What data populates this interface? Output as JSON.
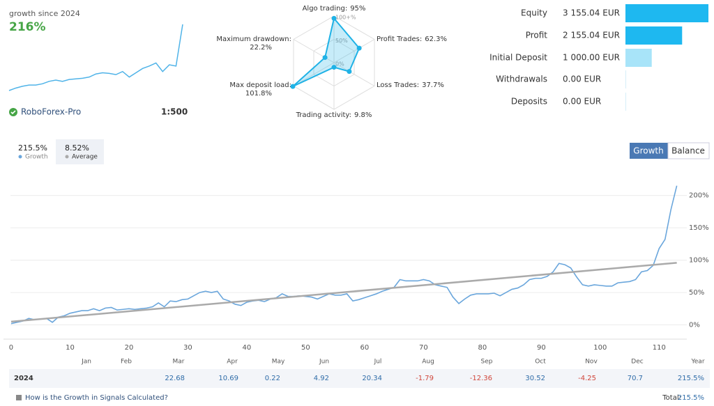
{
  "header": {
    "title": "growth since 2024",
    "growth": "216%",
    "broker": "RoboForex-Pro",
    "leverage": "1:500"
  },
  "chart_data": [
    {
      "type": "sparkline",
      "values": [
        0,
        8,
        14,
        18,
        18,
        22,
        30,
        34,
        30,
        36,
        38,
        40,
        44,
        54,
        58,
        56,
        52,
        62,
        44,
        58,
        72,
        80,
        90,
        62,
        84,
        80,
        216
      ],
      "color": "#4fb3e8"
    },
    {
      "type": "radar",
      "categories": [
        "Algo trading:",
        "Profit Trades:",
        "Loss Trades:",
        "Trading activity:",
        "Max deposit load:",
        "Maximum drawdown:"
      ],
      "values": [
        95,
        62.3,
        37.7,
        9.8,
        101.8,
        22.2
      ],
      "value_labels": [
        "95%",
        "62.3%",
        "37.7%",
        "9.8%",
        "101.8%",
        "22.2%"
      ],
      "rlim": [
        0,
        100
      ],
      "rticks": [
        {
          "value": 0,
          "label": "0%"
        },
        {
          "value": 50,
          "label": "50%"
        },
        {
          "value": 100,
          "label": "100+%"
        }
      ],
      "color": "#1fb2e6"
    },
    {
      "type": "hbar",
      "categories": [
        "Equity",
        "Profit",
        "Initial Deposit",
        "Withdrawals",
        "Deposits"
      ],
      "values": [
        3155.04,
        2155.04,
        1000,
        0,
        0
      ],
      "value_labels": [
        "3 155.04 EUR",
        "2 155.04 EUR",
        "1 000.00 EUR",
        "0.00 EUR",
        "0.00 EUR"
      ],
      "colors": [
        "#1eb8f0",
        "#1eb8f0",
        "#a8e4f9",
        "#d6eef8",
        "#d6eef8"
      ],
      "xlim": [
        0,
        3155.04
      ]
    },
    {
      "type": "line",
      "xlim": [
        -1.3,
        114.7
      ],
      "ylim": [
        -22,
        233
      ],
      "xticks": [
        0,
        10,
        20,
        30,
        40,
        50,
        60,
        70,
        80,
        90,
        100,
        110
      ],
      "yticks": [
        {
          "value": 0,
          "label": "0%"
        },
        {
          "value": 50,
          "label": "50%"
        },
        {
          "value": 100,
          "label": "100%"
        },
        {
          "value": 150,
          "label": "150%"
        },
        {
          "value": 200,
          "label": "200%"
        }
      ],
      "grid": true,
      "series": [
        {
          "name": "Growth",
          "summary": "215.5%",
          "color": "#6aa6dc",
          "x": [
            0,
            1,
            2,
            3,
            4,
            5,
            6,
            7,
            8,
            9,
            10,
            11,
            12,
            13,
            14,
            15,
            16,
            17,
            18,
            19,
            20,
            21,
            22,
            23,
            24,
            25,
            26,
            27,
            28,
            29,
            30,
            31,
            32,
            33,
            34,
            35,
            36,
            37,
            38,
            39,
            40,
            41,
            42,
            43,
            44,
            45,
            46,
            47,
            48,
            49,
            50,
            51,
            52,
            53,
            54,
            55,
            56,
            57,
            58,
            59,
            60,
            61,
            62,
            63,
            64,
            65,
            66,
            67,
            68,
            69,
            70,
            71,
            72,
            73,
            74,
            75,
            76,
            77,
            78,
            79,
            80,
            81,
            82,
            83,
            84,
            85,
            86,
            87,
            88,
            89,
            90,
            91,
            92,
            93,
            94,
            95,
            96,
            97,
            98,
            99,
            100,
            101,
            102,
            103,
            104,
            105,
            106,
            107,
            108,
            109,
            110,
            111,
            112,
            113
          ],
          "values": [
            2,
            4,
            6,
            10,
            8,
            9,
            10,
            4,
            12,
            14,
            18,
            20,
            22,
            22,
            25,
            22,
            26,
            27,
            23,
            24,
            25,
            24,
            25,
            26,
            28,
            34,
            28,
            37,
            36,
            39,
            40,
            45,
            50,
            52,
            50,
            52,
            40,
            37,
            32,
            30,
            35,
            37,
            38,
            36,
            40,
            42,
            48,
            44,
            44,
            45,
            44,
            43,
            40,
            44,
            48,
            46,
            46,
            48,
            37,
            39,
            42,
            45,
            48,
            52,
            55,
            58,
            70,
            68,
            68,
            68,
            70,
            68,
            62,
            60,
            58,
            43,
            33,
            40,
            46,
            48,
            48,
            48,
            49,
            45,
            50,
            55,
            57,
            62,
            70,
            72,
            72,
            75,
            82,
            95,
            93,
            88,
            74,
            62,
            60,
            62,
            61,
            60,
            60,
            65,
            66,
            67,
            70,
            82,
            84,
            92,
            118,
            132,
            178,
            215
          ]
        },
        {
          "name": "Average",
          "summary": "8.52%",
          "color": "#aaaaaa",
          "x": [
            0,
            113
          ],
          "values": [
            5,
            96
          ]
        }
      ]
    }
  ],
  "tabs": [
    "Growth",
    "Balance"
  ],
  "monthly_table": {
    "columns": [
      "Jan",
      "Feb",
      "Mar",
      "Apr",
      "May",
      "Jun",
      "Jul",
      "Aug",
      "Sep",
      "Oct",
      "Nov",
      "Dec",
      "Year"
    ],
    "year": "2024",
    "values": [
      null,
      null,
      22.68,
      10.69,
      0.22,
      4.92,
      20.34,
      -1.79,
      -12.36,
      30.52,
      -4.25,
      70.7,
      "215.5%"
    ]
  },
  "footer": {
    "link": "How is the Growth in Signals Calculated?",
    "total_label": "Total:",
    "total_value": "215.5%"
  }
}
